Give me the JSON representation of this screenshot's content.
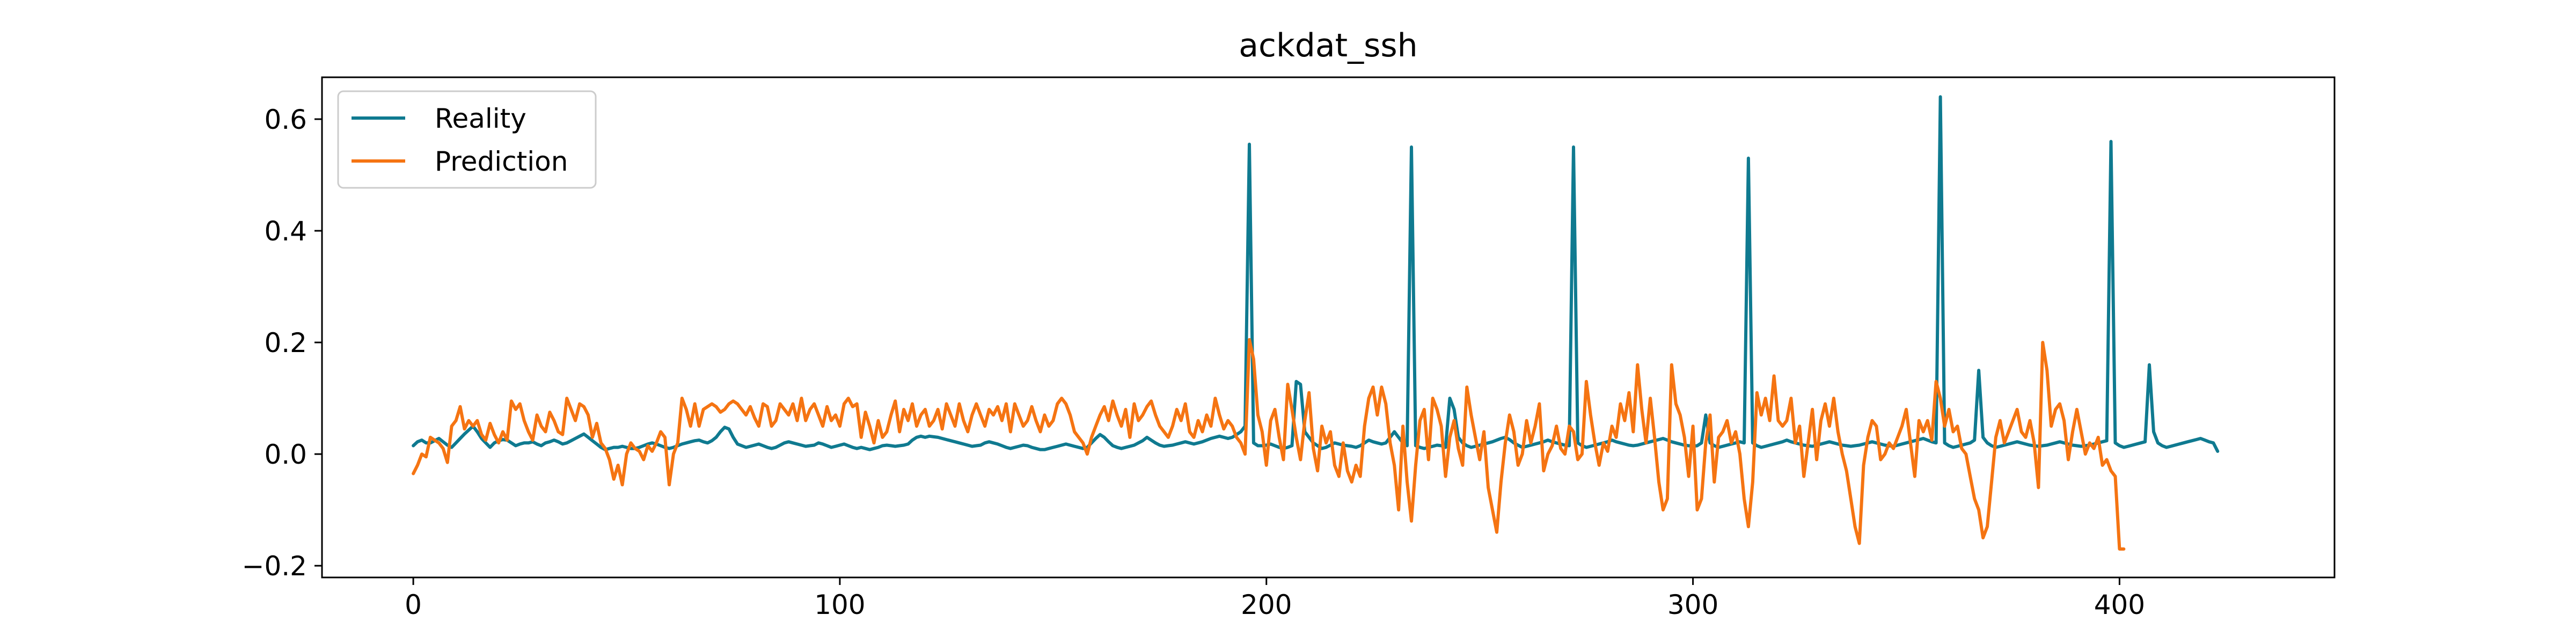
{
  "chart_data": {
    "type": "line",
    "title": "ackdat_ssh",
    "xlabel": "",
    "ylabel": "",
    "xlim": [
      -21.4,
      450.4
    ],
    "ylim": [
      -0.221,
      0.675
    ],
    "xticks": [
      0,
      100,
      200,
      300,
      400
    ],
    "xtick_labels": [
      "0",
      "100",
      "200",
      "300",
      "400"
    ],
    "yticks": [
      -0.2,
      0.0,
      0.2,
      0.4,
      0.6
    ],
    "ytick_labels": [
      "−0.2",
      "0.0",
      "0.2",
      "0.4",
      "0.6"
    ],
    "grid": false,
    "legend_position": "top-left",
    "x_start": 0,
    "x_step": 1,
    "series": [
      {
        "name": "Reality",
        "color": "#0f7a90",
        "values": [
          0.015,
          0.022,
          0.025,
          0.02,
          0.02,
          0.024,
          0.028,
          0.022,
          0.016,
          0.012,
          0.02,
          0.028,
          0.036,
          0.043,
          0.05,
          0.04,
          0.028,
          0.02,
          0.012,
          0.02,
          0.024,
          0.026,
          0.025,
          0.02,
          0.015,
          0.018,
          0.02,
          0.02,
          0.022,
          0.018,
          0.015,
          0.02,
          0.022,
          0.025,
          0.022,
          0.018,
          0.02,
          0.024,
          0.028,
          0.032,
          0.036,
          0.03,
          0.024,
          0.018,
          0.012,
          0.008,
          0.01,
          0.012,
          0.012,
          0.014,
          0.012,
          0.01,
          0.01,
          0.012,
          0.015,
          0.018,
          0.02,
          0.018,
          0.015,
          0.012,
          0.01,
          0.012,
          0.015,
          0.018,
          0.02,
          0.022,
          0.024,
          0.025,
          0.022,
          0.02,
          0.024,
          0.03,
          0.04,
          0.048,
          0.045,
          0.03,
          0.018,
          0.015,
          0.012,
          0.014,
          0.016,
          0.018,
          0.015,
          0.012,
          0.01,
          0.012,
          0.016,
          0.02,
          0.022,
          0.02,
          0.018,
          0.016,
          0.014,
          0.015,
          0.016,
          0.02,
          0.018,
          0.015,
          0.012,
          0.014,
          0.016,
          0.018,
          0.015,
          0.012,
          0.01,
          0.012,
          0.01,
          0.008,
          0.01,
          0.012,
          0.015,
          0.016,
          0.015,
          0.014,
          0.015,
          0.016,
          0.018,
          0.025,
          0.03,
          0.032,
          0.03,
          0.032,
          0.031,
          0.03,
          0.028,
          0.026,
          0.024,
          0.022,
          0.02,
          0.018,
          0.016,
          0.014,
          0.015,
          0.016,
          0.02,
          0.022,
          0.02,
          0.018,
          0.015,
          0.012,
          0.01,
          0.012,
          0.014,
          0.016,
          0.015,
          0.012,
          0.01,
          0.008,
          0.008,
          0.01,
          0.012,
          0.014,
          0.016,
          0.018,
          0.016,
          0.014,
          0.012,
          0.01,
          0.012,
          0.02,
          0.028,
          0.035,
          0.03,
          0.022,
          0.015,
          0.012,
          0.01,
          0.012,
          0.014,
          0.016,
          0.02,
          0.024,
          0.03,
          0.025,
          0.02,
          0.016,
          0.014,
          0.015,
          0.016,
          0.018,
          0.02,
          0.022,
          0.02,
          0.018,
          0.02,
          0.022,
          0.025,
          0.028,
          0.03,
          0.032,
          0.03,
          0.028,
          0.03,
          0.035,
          0.04,
          0.05,
          0.555,
          0.02,
          0.015,
          0.015,
          0.016,
          0.018,
          0.015,
          0.012,
          0.01,
          0.012,
          0.015,
          0.13,
          0.125,
          0.04,
          0.03,
          0.02,
          0.015,
          0.01,
          0.012,
          0.016,
          0.02,
          0.018,
          0.016,
          0.015,
          0.014,
          0.012,
          0.015,
          0.02,
          0.025,
          0.022,
          0.02,
          0.018,
          0.02,
          0.03,
          0.04,
          0.03,
          0.02,
          0.015,
          0.55,
          0.015,
          0.012,
          0.01,
          0.012,
          0.014,
          0.016,
          0.015,
          0.012,
          0.1,
          0.08,
          0.03,
          0.02,
          0.015,
          0.012,
          0.014,
          0.016,
          0.018,
          0.02,
          0.022,
          0.025,
          0.028,
          0.03,
          0.026,
          0.02,
          0.016,
          0.012,
          0.014,
          0.016,
          0.018,
          0.02,
          0.022,
          0.025,
          0.022,
          0.02,
          0.018,
          0.016,
          0.015,
          0.55,
          0.02,
          0.015,
          0.012,
          0.014,
          0.016,
          0.018,
          0.02,
          0.022,
          0.025,
          0.022,
          0.02,
          0.018,
          0.016,
          0.015,
          0.016,
          0.018,
          0.02,
          0.022,
          0.024,
          0.026,
          0.028,
          0.025,
          0.022,
          0.02,
          0.018,
          0.016,
          0.015,
          0.014,
          0.015,
          0.02,
          0.07,
          0.02,
          0.015,
          0.012,
          0.014,
          0.016,
          0.018,
          0.02,
          0.022,
          0.02,
          0.53,
          0.02,
          0.015,
          0.012,
          0.014,
          0.016,
          0.018,
          0.02,
          0.022,
          0.025,
          0.022,
          0.02,
          0.018,
          0.016,
          0.015,
          0.014,
          0.016,
          0.018,
          0.02,
          0.022,
          0.02,
          0.018,
          0.016,
          0.015,
          0.014,
          0.015,
          0.016,
          0.018,
          0.02,
          0.022,
          0.02,
          0.018,
          0.016,
          0.015,
          0.014,
          0.016,
          0.018,
          0.02,
          0.022,
          0.024,
          0.026,
          0.028,
          0.025,
          0.022,
          0.02,
          0.64,
          0.02,
          0.015,
          0.012,
          0.014,
          0.016,
          0.018,
          0.02,
          0.025,
          0.15,
          0.03,
          0.02,
          0.015,
          0.012,
          0.014,
          0.016,
          0.018,
          0.02,
          0.022,
          0.02,
          0.018,
          0.016,
          0.015,
          0.014,
          0.015,
          0.016,
          0.018,
          0.02,
          0.022,
          0.02,
          0.018,
          0.016,
          0.015,
          0.014,
          0.015,
          0.016,
          0.018,
          0.02,
          0.022,
          0.024,
          0.56,
          0.02,
          0.015,
          0.012,
          0.014,
          0.016,
          0.018,
          0.02,
          0.022,
          0.16,
          0.04,
          0.02,
          0.015,
          0.012,
          0.014,
          0.016,
          0.018,
          0.02,
          0.022,
          0.024,
          0.026,
          0.028,
          0.025,
          0.022,
          0.02,
          0.005
        ]
      },
      {
        "name": "Prediction",
        "color": "#f57412",
        "values": [
          -0.035,
          -0.02,
          0.0,
          -0.005,
          0.03,
          0.025,
          0.02,
          0.01,
          -0.015,
          0.05,
          0.06,
          0.085,
          0.045,
          0.06,
          0.05,
          0.06,
          0.035,
          0.025,
          0.055,
          0.035,
          0.02,
          0.04,
          0.025,
          0.095,
          0.08,
          0.09,
          0.06,
          0.04,
          0.025,
          0.07,
          0.05,
          0.04,
          0.075,
          0.06,
          0.04,
          0.035,
          0.1,
          0.08,
          0.06,
          0.09,
          0.085,
          0.07,
          0.03,
          0.055,
          0.02,
          0.01,
          -0.01,
          -0.045,
          -0.02,
          -0.055,
          0.0,
          0.02,
          0.01,
          0.005,
          -0.01,
          0.015,
          0.005,
          0.02,
          0.04,
          0.03,
          -0.055,
          0.0,
          0.02,
          0.1,
          0.08,
          0.05,
          0.09,
          0.05,
          0.08,
          0.085,
          0.09,
          0.085,
          0.075,
          0.08,
          0.09,
          0.095,
          0.09,
          0.08,
          0.07,
          0.085,
          0.065,
          0.05,
          0.09,
          0.085,
          0.05,
          0.06,
          0.09,
          0.08,
          0.07,
          0.09,
          0.06,
          0.1,
          0.06,
          0.08,
          0.09,
          0.07,
          0.05,
          0.085,
          0.06,
          0.07,
          0.05,
          0.09,
          0.1,
          0.085,
          0.09,
          0.03,
          0.075,
          0.05,
          0.02,
          0.06,
          0.03,
          0.04,
          0.07,
          0.095,
          0.04,
          0.08,
          0.06,
          0.09,
          0.05,
          0.07,
          0.08,
          0.05,
          0.06,
          0.08,
          0.045,
          0.09,
          0.07,
          0.05,
          0.09,
          0.06,
          0.04,
          0.07,
          0.09,
          0.07,
          0.05,
          0.08,
          0.07,
          0.085,
          0.06,
          0.09,
          0.04,
          0.09,
          0.07,
          0.05,
          0.06,
          0.085,
          0.06,
          0.04,
          0.07,
          0.05,
          0.06,
          0.09,
          0.1,
          0.09,
          0.07,
          0.04,
          0.03,
          0.02,
          0.0,
          0.03,
          0.05,
          0.07,
          0.085,
          0.06,
          0.095,
          0.07,
          0.05,
          0.08,
          0.03,
          0.09,
          0.06,
          0.07,
          0.085,
          0.095,
          0.07,
          0.05,
          0.04,
          0.03,
          0.05,
          0.08,
          0.06,
          0.09,
          0.04,
          0.03,
          0.06,
          0.04,
          0.07,
          0.05,
          0.1,
          0.07,
          0.045,
          0.06,
          0.05,
          0.03,
          0.02,
          0.0,
          0.205,
          0.17,
          0.07,
          0.04,
          -0.02,
          0.06,
          0.08,
          0.03,
          -0.01,
          0.125,
          0.08,
          0.03,
          -0.01,
          0.06,
          0.11,
          0.01,
          -0.03,
          0.05,
          0.02,
          0.04,
          -0.02,
          -0.04,
          0.02,
          -0.03,
          -0.05,
          -0.02,
          -0.04,
          0.05,
          0.1,
          0.12,
          0.07,
          0.12,
          0.09,
          0.02,
          -0.02,
          -0.1,
          0.05,
          -0.05,
          -0.12,
          -0.02,
          0.06,
          0.08,
          -0.01,
          0.1,
          0.08,
          0.05,
          -0.04,
          0.03,
          0.06,
          0.01,
          -0.02,
          0.12,
          0.07,
          0.03,
          -0.01,
          0.04,
          -0.06,
          -0.1,
          -0.14,
          -0.05,
          0.02,
          0.07,
          0.04,
          -0.02,
          0.0,
          0.06,
          0.02,
          0.05,
          0.09,
          -0.03,
          0.0,
          0.015,
          0.05,
          0.01,
          0.0,
          0.05,
          0.04,
          -0.01,
          0.0,
          0.13,
          0.07,
          0.02,
          -0.02,
          0.02,
          0.005,
          0.05,
          0.03,
          0.09,
          0.06,
          0.11,
          0.04,
          0.16,
          0.08,
          0.02,
          0.1,
          0.03,
          -0.05,
          -0.1,
          -0.08,
          0.16,
          0.09,
          0.07,
          0.03,
          -0.04,
          0.05,
          -0.1,
          -0.08,
          0.02,
          0.07,
          -0.05,
          0.03,
          0.04,
          0.06,
          0.02,
          0.04,
          0.0,
          -0.08,
          -0.13,
          -0.05,
          0.11,
          0.07,
          0.1,
          0.06,
          0.14,
          0.06,
          0.05,
          0.06,
          0.1,
          0.02,
          0.05,
          -0.04,
          0.02,
          0.08,
          -0.01,
          0.06,
          0.09,
          0.05,
          0.1,
          0.04,
          0.0,
          -0.03,
          -0.08,
          -0.13,
          -0.16,
          -0.02,
          0.03,
          0.06,
          0.05,
          -0.01,
          0.0,
          0.02,
          0.01,
          0.03,
          0.05,
          0.08,
          0.02,
          -0.04,
          0.06,
          0.04,
          0.06,
          0.025,
          0.13,
          0.1,
          0.05,
          0.08,
          0.04,
          0.05,
          0.01,
          0.0,
          -0.04,
          -0.08,
          -0.1,
          -0.15,
          -0.13,
          -0.05,
          0.03,
          0.06,
          0.02,
          0.04,
          0.06,
          0.08,
          0.04,
          0.03,
          0.06,
          0.02,
          -0.06,
          0.2,
          0.15,
          0.05,
          0.08,
          0.09,
          0.06,
          -0.01,
          0.04,
          0.08,
          0.04,
          0.0,
          0.02,
          0.01,
          0.03,
          -0.02,
          -0.01,
          -0.03,
          -0.04,
          -0.17,
          -0.17
        ]
      }
    ]
  }
}
